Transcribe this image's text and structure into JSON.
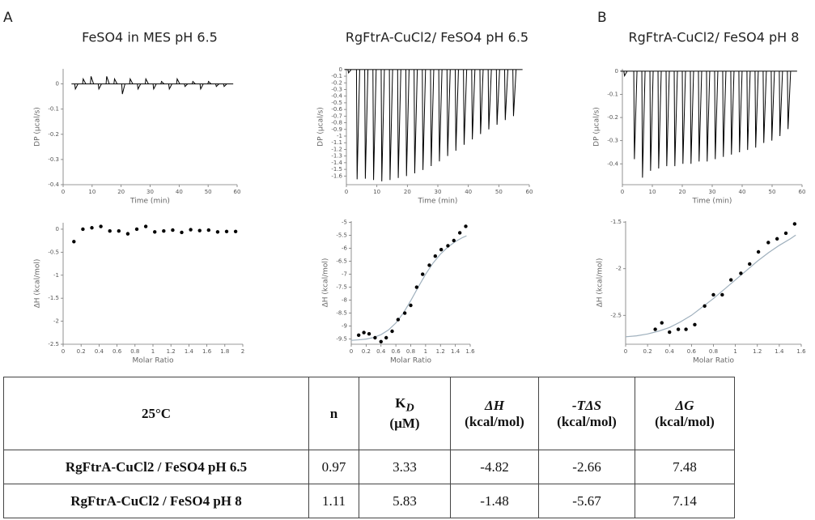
{
  "panel_labels": [
    "A",
    "B"
  ],
  "chart_data": [
    {
      "type": "impulse",
      "title": "FeSO4 in MES pH 6.5",
      "xlabel": "Time (min)",
      "ylabel": "DP (µcal/s)",
      "color": "#000000",
      "xlim": [
        0,
        60
      ],
      "ylim": [
        -0.4,
        0.06
      ],
      "xticks": [
        0,
        10,
        20,
        30,
        40,
        50,
        60
      ],
      "yticks": [
        0,
        -0.1,
        -0.2,
        -0.3,
        -0.4
      ],
      "x": [
        4,
        6.7,
        9.4,
        12.1,
        14.8,
        17.5,
        20.2,
        22.9,
        25.6,
        28.3,
        31,
        33.7,
        36.4,
        39.1,
        41.8,
        44.5,
        47.2,
        49.9,
        52.6,
        55.3
      ],
      "values": [
        -0.02,
        0.02,
        0.03,
        -0.02,
        0.03,
        0.02,
        -0.04,
        0.02,
        -0.02,
        0.02,
        -0.02,
        0.01,
        -0.02,
        0.02,
        -0.01,
        0.01,
        -0.02,
        0.01,
        -0.01,
        -0.01
      ]
    },
    {
      "type": "impulse",
      "title": "RgFtrA-CuCl2/ FeSO4 pH 6.5",
      "xlabel": "Time (min)",
      "ylabel": "DP (µcal/s)",
      "color": "#000000",
      "xlim": [
        0,
        60
      ],
      "ylim": [
        -1.73,
        0.01
      ],
      "xticks": [
        0,
        10,
        20,
        30,
        40,
        50,
        60
      ],
      "yticks": [
        0,
        -0.1,
        -0.2,
        -0.3,
        -0.4,
        -0.5,
        -0.6,
        -0.7,
        -0.8,
        -0.9,
        -1,
        -1.1,
        -1.2,
        -1.3,
        -1.4,
        -1.5,
        -1.6
      ],
      "x": [
        0.5,
        3.3,
        6.0,
        8.7,
        11.4,
        14.1,
        16.8,
        19.5,
        22.2,
        24.9,
        27.6,
        30.3,
        33,
        35.7,
        38.4,
        41.1,
        43.8,
        46.5,
        49.2,
        51.9,
        54.6
      ],
      "values": [
        -0.05,
        -1.65,
        -1.64,
        -1.66,
        -1.68,
        -1.66,
        -1.63,
        -1.6,
        -1.56,
        -1.51,
        -1.45,
        -1.38,
        -1.3,
        -1.22,
        -1.13,
        -1.05,
        -0.97,
        -0.9,
        -0.83,
        -0.76,
        -0.7
      ]
    },
    {
      "type": "impulse",
      "title": "RgFtrA-CuCl2/ FeSO4 pH 8",
      "xlabel": "Time (min)",
      "ylabel": "DP (µcal/s)",
      "color": "#000000",
      "xlim": [
        0,
        60
      ],
      "ylim": [
        -0.49,
        0.01
      ],
      "xticks": [
        0,
        10,
        20,
        30,
        40,
        50,
        60
      ],
      "yticks": [
        0,
        -0.1,
        -0.2,
        -0.3,
        -0.4
      ],
      "x": [
        0.5,
        3.8,
        6.5,
        9.2,
        11.9,
        14.6,
        17.3,
        20,
        22.7,
        25.4,
        28.1,
        30.8,
        33.5,
        36.2,
        38.9,
        41.6,
        44.3,
        47,
        49.7,
        52.4,
        55.1
      ],
      "values": [
        -0.02,
        -0.38,
        -0.46,
        -0.43,
        -0.42,
        -0.41,
        -0.41,
        -0.4,
        -0.4,
        -0.39,
        -0.39,
        -0.38,
        -0.37,
        -0.36,
        -0.35,
        -0.34,
        -0.33,
        -0.31,
        -0.3,
        -0.28,
        -0.25
      ]
    },
    {
      "type": "scatter",
      "xlabel": "Molar Ratio",
      "ylabel": "ΔH (kcal/mol)",
      "xlim": [
        0,
        2
      ],
      "ylim": [
        -2.5,
        0.14
      ],
      "xticks": [
        0,
        0.2,
        0.4,
        0.6,
        0.8,
        1,
        1.2,
        1.4,
        1.6,
        1.8,
        2
      ],
      "yticks": [
        0,
        -0.5,
        -1,
        -1.5,
        -2,
        -2.5
      ],
      "points": {
        "color": "#000000",
        "x": [
          0.12,
          0.22,
          0.32,
          0.42,
          0.52,
          0.62,
          0.72,
          0.82,
          0.92,
          1.02,
          1.12,
          1.22,
          1.32,
          1.42,
          1.52,
          1.62,
          1.72,
          1.82,
          1.92
        ],
        "values": [
          -0.27,
          0,
          0.03,
          0.06,
          -0.04,
          -0.04,
          -0.1,
          0,
          0.06,
          -0.06,
          -0.04,
          -0.02,
          -0.07,
          -0.01,
          -0.03,
          -0.02,
          -0.06,
          -0.05,
          -0.05
        ]
      }
    },
    {
      "type": "scatter",
      "xlabel": "Molar Ratio",
      "ylabel": "ΔH (kcal/mol)",
      "xlim": [
        0,
        1.6
      ],
      "ylim": [
        -9.7,
        -4.95
      ],
      "xticks": [
        0,
        0.2,
        0.4,
        0.6,
        0.8,
        1,
        1.2,
        1.4,
        1.6
      ],
      "yticks": [
        -5,
        -5.5,
        -6,
        -6.5,
        -7,
        -7.5,
        -8,
        -8.5,
        -9,
        -9.5
      ],
      "points": {
        "color": "#000000",
        "x": [
          0.1,
          0.17,
          0.24,
          0.32,
          0.4,
          0.47,
          0.55,
          0.63,
          0.72,
          0.8,
          0.88,
          0.96,
          1.05,
          1.13,
          1.21,
          1.3,
          1.38,
          1.46,
          1.54
        ],
        "values": [
          -9.35,
          -9.25,
          -9.3,
          -9.45,
          -9.6,
          -9.45,
          -9.2,
          -8.75,
          -8.5,
          -8.2,
          -7.5,
          -7.0,
          -6.65,
          -6.3,
          -6.05,
          -5.9,
          -5.7,
          -5.4,
          -5.15
        ]
      },
      "fit": {
        "color": "#9fb0bd",
        "x": [
          0,
          0.1,
          0.2,
          0.3,
          0.4,
          0.5,
          0.6,
          0.7,
          0.8,
          0.9,
          1.0,
          1.1,
          1.2,
          1.3,
          1.4,
          1.5,
          1.55
        ],
        "values": [
          -9.55,
          -9.53,
          -9.5,
          -9.44,
          -9.33,
          -9.15,
          -8.88,
          -8.5,
          -8.02,
          -7.5,
          -7.0,
          -6.57,
          -6.22,
          -5.95,
          -5.74,
          -5.58,
          -5.52
        ]
      }
    },
    {
      "type": "scatter",
      "xlabel": "Molar Ratio",
      "ylabel": "ΔH (kcal/mol)",
      "xlim": [
        0,
        1.6
      ],
      "ylim": [
        -2.81,
        -1.49
      ],
      "xticks": [
        0,
        0.2,
        0.4,
        0.6,
        0.8,
        1,
        1.2,
        1.4,
        1.6
      ],
      "yticks": [
        -1.5,
        -2,
        -2.5
      ],
      "points": {
        "color": "#000000",
        "x": [
          0.27,
          0.33,
          0.4,
          0.48,
          0.55,
          0.63,
          0.72,
          0.8,
          0.88,
          0.96,
          1.05,
          1.13,
          1.21,
          1.3,
          1.38,
          1.46,
          1.54
        ],
        "values": [
          -2.65,
          -2.58,
          -2.68,
          -2.65,
          -2.65,
          -2.6,
          -2.4,
          -2.28,
          -2.28,
          -2.12,
          -2.05,
          -1.95,
          -1.82,
          -1.72,
          -1.68,
          -1.62,
          -1.52
        ]
      },
      "fit": {
        "color": "#9fb0bd",
        "x": [
          0,
          0.1,
          0.2,
          0.3,
          0.4,
          0.5,
          0.6,
          0.7,
          0.8,
          0.9,
          1.0,
          1.1,
          1.2,
          1.3,
          1.4,
          1.5,
          1.55
        ],
        "values": [
          -2.73,
          -2.72,
          -2.7,
          -2.67,
          -2.63,
          -2.57,
          -2.5,
          -2.41,
          -2.32,
          -2.22,
          -2.12,
          -2.02,
          -1.92,
          -1.83,
          -1.75,
          -1.68,
          -1.64
        ]
      }
    }
  ],
  "table": {
    "headers": [
      {
        "label": "25°C"
      },
      {
        "label": "n"
      },
      {
        "label": "K",
        "sub": "D",
        "unit": "(µM)"
      },
      {
        "label": "ΔH",
        "unit": "(kcal/mol)"
      },
      {
        "label": "-TΔS",
        "unit": "(kcal/mol)"
      },
      {
        "label": "ΔG",
        "unit": "(kcal/mol)"
      }
    ],
    "rows": [
      {
        "label": "RgFtrA-CuCl2 / FeSO4 pH 6.5",
        "values": [
          0.97,
          3.33,
          -4.82,
          -2.66,
          7.48
        ]
      },
      {
        "label": "RgFtrA-CuCl2 / FeSO4 pH 8",
        "values": [
          1.11,
          5.83,
          -1.48,
          -5.67,
          7.14
        ]
      }
    ]
  }
}
